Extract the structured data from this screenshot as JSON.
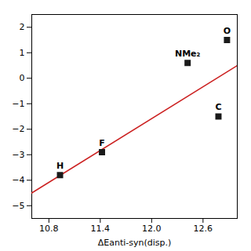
{
  "chart_data": {
    "type": "scatter",
    "x": [
      10.93,
      11.42,
      12.42,
      12.78,
      12.88
    ],
    "values": [
      -3.8,
      -2.9,
      0.6,
      -1.5,
      1.5
    ],
    "color": "#1a1a1a",
    "marker": "square",
    "annotations": [
      {
        "text": "H",
        "x": 10.93,
        "y": -3.8
      },
      {
        "text": "F",
        "x": 11.42,
        "y": -2.9
      },
      {
        "text": "NMe₂",
        "x": 12.42,
        "y": 0.6
      },
      {
        "text": "C",
        "x": 12.78,
        "y": -1.5
      },
      {
        "text": "O",
        "x": 12.88,
        "y": 1.5
      }
    ],
    "trendline": {
      "x": [
        10.6,
        13.0
      ],
      "values": [
        -4.5,
        0.5
      ],
      "color": "#cc2222"
    },
    "xlabel": "ΔEanti-syn(disp.)",
    "xlim": [
      10.6,
      13.0
    ],
    "ylim": [
      -5.5,
      2.5
    ],
    "xticks": [
      10.8,
      11.4,
      12.0,
      12.6
    ],
    "yticks": [
      -5,
      -4,
      -3,
      -2,
      -1,
      0,
      1,
      2
    ],
    "grid": false
  }
}
